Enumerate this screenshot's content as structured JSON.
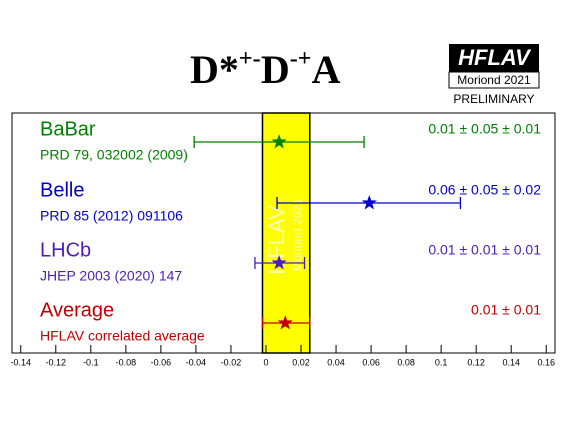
{
  "chart_data": {
    "type": "forest",
    "title": [
      {
        "text": "D*",
        "sup": "+-"
      },
      {
        "text": "D",
        "sup": "-+"
      },
      {
        "text": "A"
      }
    ],
    "logo": {
      "name": "HFLAV",
      "conference": "Moriond 2021",
      "status": "PRELIMINARY"
    },
    "band_label": "HFLAV",
    "band_sublabel": "Moriond 2021",
    "categories": [
      "BaBar",
      "Belle",
      "LHCb",
      "Average"
    ],
    "references": [
      "PRD 79, 032002 (2009)",
      "PRD 85 (2012) 091106",
      "JHEP 2003 (2020) 147",
      "HFLAV correlated average"
    ],
    "colors": [
      "#008000",
      "#0000cc",
      "#4b1fb4",
      "#c00000"
    ],
    "values": [
      0.0075,
      0.059,
      0.0075,
      0.011
    ],
    "value_labels": [
      "0.01 ± 0.05 ± 0.01",
      "0.06 ± 0.05 ± 0.02",
      "0.01 ± 0.01 ± 0.01",
      "0.01 ± 0.01"
    ],
    "lower": [
      -0.041,
      0.0063,
      -0.0063,
      -0.002
    ],
    "upper": [
      0.056,
      0.111,
      0.022,
      0.025
    ],
    "band": [
      -0.002,
      0.025
    ],
    "band_color": "#ffff00",
    "xlim": [
      -0.145,
      0.165
    ],
    "xticks": [
      -0.14,
      -0.12,
      -0.1,
      -0.08,
      -0.06,
      -0.04,
      -0.02,
      0,
      0.02,
      0.04,
      0.06,
      0.08,
      0.1,
      0.12,
      0.14,
      0.16
    ]
  }
}
